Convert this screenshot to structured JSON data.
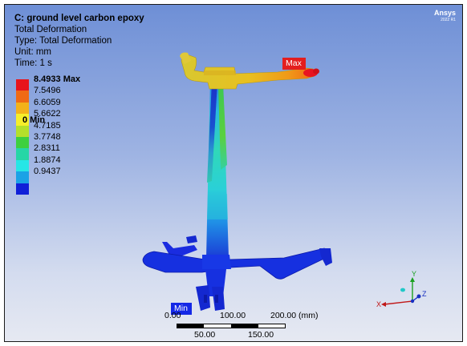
{
  "result": {
    "title": "C: ground level carbon epoxy",
    "type_name": "Total Deformation",
    "type_line": "Type: Total Deformation",
    "unit_line": "Unit: mm",
    "time_line": "Time: 1 s"
  },
  "brand": {
    "name": "Ansys",
    "version": "2022 R1"
  },
  "legend": {
    "entries": [
      {
        "label": "8.4933 Max",
        "color": "#e8141c",
        "bold": true
      },
      {
        "label": "7.5496",
        "color": "#f06a14",
        "bold": false
      },
      {
        "label": "6.6059",
        "color": "#f3b21a",
        "bold": false
      },
      {
        "label": "5.6622",
        "color": "#f6ee2a",
        "bold": false
      },
      {
        "label": "4.7185",
        "color": "#b4e02a",
        "bold": false
      },
      {
        "label": "3.7748",
        "color": "#3ed03e",
        "bold": false
      },
      {
        "label": "2.8311",
        "color": "#26d6a6",
        "bold": false
      },
      {
        "label": "1.8874",
        "color": "#26e6e6",
        "bold": false
      },
      {
        "label": "0.9437",
        "color": "#1aa2e6",
        "bold": false
      }
    ],
    "end_label": "0 Min"
  },
  "probes": {
    "max_label": "Max",
    "min_label": "Min"
  },
  "scale_bar": {
    "top_labels": [
      "0.00",
      "100.00",
      "200.00 (mm)"
    ],
    "bottom_labels": [
      "50.00",
      "150.00"
    ]
  },
  "triad": {
    "x_label": "X",
    "y_label": "Y",
    "z_label": "Z"
  }
}
